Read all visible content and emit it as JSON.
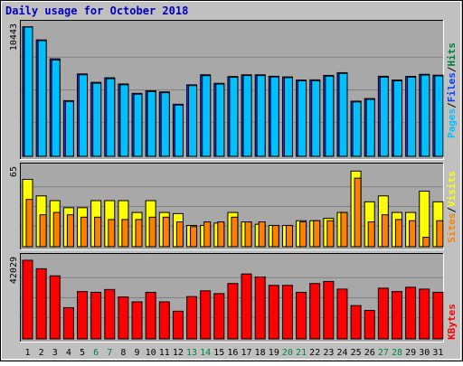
{
  "title": "Daily usage for October 2018",
  "colors": {
    "background": "#c0c0c0",
    "panel": "#a8a8a8",
    "title": "#0000c0",
    "pages": "#00c0ff",
    "files": "#0040ff",
    "hits": "#008040",
    "visits": "#ffff00",
    "sites": "#ff8000",
    "kbytes": "#ff0000",
    "weekend_label": "#008040",
    "weekday_label": "#000000"
  },
  "legend": {
    "pages": "Pages",
    "files": "Files",
    "hits": "Hits",
    "visits": "Visits",
    "sites": "Sites",
    "kbytes": "KBytes",
    "sep": "/"
  },
  "axis_max_labels": {
    "hits_panel": "10443",
    "visits_panel": "65",
    "kbytes_panel": "42029"
  },
  "chart_data": {
    "type": "bar",
    "title": "Daily usage for October 2018",
    "days": [
      "1",
      "2",
      "3",
      "4",
      "5",
      "6",
      "7",
      "8",
      "9",
      "10",
      "11",
      "12",
      "13",
      "14",
      "15",
      "16",
      "17",
      "18",
      "19",
      "20",
      "21",
      "22",
      "23",
      "24",
      "25",
      "26",
      "27",
      "28",
      "29",
      "30",
      "31"
    ],
    "weekend_days": [
      "6",
      "7",
      "13",
      "14",
      "20",
      "21",
      "27",
      "28"
    ],
    "ymax": {
      "hits": 10443,
      "visits": 65,
      "kbytes": 42029
    },
    "series": [
      {
        "name": "Pages",
        "panel": "hits",
        "values": [
          10470,
          9410,
          7880,
          4500,
          6660,
          5980,
          6350,
          5850,
          5090,
          5300,
          5210,
          4210,
          5780,
          6590,
          5900,
          6450,
          6590,
          6590,
          6470,
          6420,
          6170,
          6180,
          6540,
          6760,
          4460,
          4670,
          6470,
          6170,
          6460,
          6630,
          6560
        ]
      },
      {
        "name": "Files",
        "panel": "hits",
        "values": [
          10443,
          9350,
          7780,
          4430,
          6590,
          5910,
          6280,
          5780,
          5020,
          5230,
          5140,
          4140,
          5720,
          6520,
          5840,
          6390,
          6530,
          6530,
          6420,
          6360,
          6100,
          6110,
          6480,
          6700,
          4400,
          4600,
          6400,
          6100,
          6400,
          6570,
          6500
        ]
      },
      {
        "name": "Visits",
        "panel": "visits",
        "values": [
          57,
          43,
          39,
          33,
          33,
          39,
          39,
          39,
          29,
          39,
          29,
          28,
          18,
          18,
          20,
          29,
          21,
          19,
          18,
          18,
          22,
          22,
          24,
          29,
          64,
          38,
          43,
          29,
          29,
          47,
          38
        ]
      },
      {
        "name": "Sites",
        "panel": "visits",
        "values": [
          40,
          27,
          29,
          27,
          25,
          25,
          23,
          23,
          23,
          25,
          25,
          21,
          17,
          21,
          21,
          25,
          21,
          21,
          18,
          18,
          21,
          22,
          22,
          29,
          58,
          21,
          27,
          23,
          22,
          8,
          22
        ]
      },
      {
        "name": "KBytes",
        "panel": "kbytes",
        "values": [
          42029,
          37500,
          33700,
          16700,
          25300,
          24900,
          26400,
          22400,
          19800,
          24900,
          19800,
          14800,
          22600,
          25700,
          24200,
          29600,
          34700,
          33100,
          28600,
          28600,
          24900,
          29600,
          30700,
          26600,
          17800,
          15200,
          27100,
          25300,
          27600,
          26600,
          24900
        ]
      }
    ]
  }
}
